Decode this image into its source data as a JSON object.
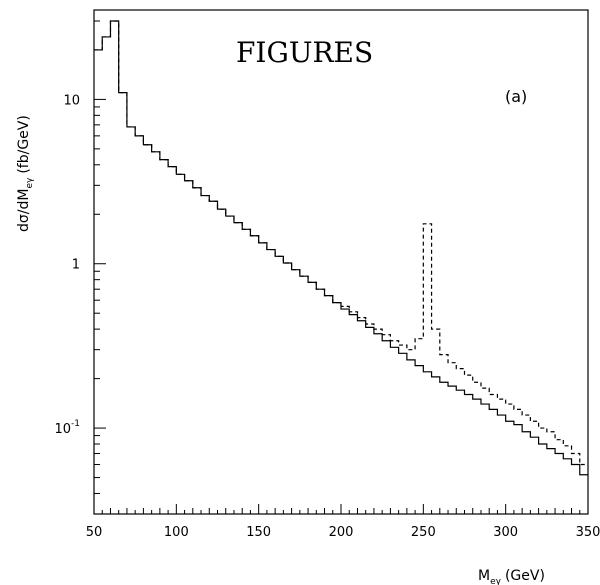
{
  "chart_data": {
    "type": "line",
    "title": "FIGURES",
    "panel_label": "(a)",
    "xlabel": "M",
    "xlabel_sub": "eγ",
    "xlabel_unit": "(GeV)",
    "ylabel": "dσ/dM",
    "ylabel_sub": "eγ",
    "ylabel_unit": "(fb/GeV)",
    "xlim": [
      50,
      350
    ],
    "ylim": [
      0.03,
      35
    ],
    "yscale": "log",
    "grid": false,
    "x_ticks": [
      {
        "value": 50,
        "label": "50"
      },
      {
        "value": 100,
        "label": "100"
      },
      {
        "value": 150,
        "label": "150"
      },
      {
        "value": 200,
        "label": "200"
      },
      {
        "value": 250,
        "label": "250"
      },
      {
        "value": 300,
        "label": "300"
      },
      {
        "value": 350,
        "label": "350"
      }
    ],
    "y_ticks": [
      {
        "value": 0.1,
        "base": "10",
        "exp": "-1"
      },
      {
        "value": 1,
        "base": "1",
        "exp": ""
      },
      {
        "value": 10,
        "base": "10",
        "exp": ""
      }
    ],
    "bin_edges": [
      50,
      55,
      60,
      65,
      70,
      75,
      80,
      85,
      90,
      95,
      100,
      105,
      110,
      115,
      120,
      125,
      130,
      135,
      140,
      145,
      150,
      155,
      160,
      165,
      170,
      175,
      180,
      185,
      190,
      195,
      200,
      205,
      210,
      215,
      220,
      225,
      230,
      235,
      240,
      245,
      250,
      255,
      260,
      265,
      270,
      275,
      280,
      285,
      290,
      295,
      300,
      305,
      310,
      315,
      320,
      325,
      330,
      335,
      340,
      345,
      350
    ],
    "series": [
      {
        "style": "solid",
        "values": [
          20,
          24,
          30,
          11,
          6.8,
          6.0,
          5.3,
          4.8,
          4.3,
          3.9,
          3.5,
          3.2,
          2.9,
          2.6,
          2.4,
          2.15,
          1.95,
          1.78,
          1.62,
          1.48,
          1.34,
          1.22,
          1.11,
          1.01,
          0.92,
          0.84,
          0.77,
          0.7,
          0.64,
          0.58,
          0.53,
          0.49,
          0.45,
          0.41,
          0.375,
          0.34,
          0.31,
          0.285,
          0.26,
          0.24,
          0.22,
          0.205,
          0.19,
          0.18,
          0.17,
          0.16,
          0.15,
          0.14,
          0.13,
          0.12,
          0.11,
          0.105,
          0.095,
          0.088,
          0.08,
          0.075,
          0.07,
          0.065,
          0.06,
          0.052
        ]
      },
      {
        "style": "dashed",
        "values": [
          20,
          24,
          30,
          11,
          6.8,
          6.0,
          5.3,
          4.8,
          4.3,
          3.9,
          3.5,
          3.2,
          2.9,
          2.6,
          2.4,
          2.15,
          1.95,
          1.78,
          1.62,
          1.48,
          1.34,
          1.22,
          1.11,
          1.01,
          0.92,
          0.84,
          0.77,
          0.7,
          0.64,
          0.58,
          0.55,
          0.51,
          0.47,
          0.43,
          0.4,
          0.37,
          0.34,
          0.32,
          0.3,
          0.35,
          1.75,
          0.4,
          0.28,
          0.25,
          0.23,
          0.21,
          0.19,
          0.175,
          0.16,
          0.15,
          0.14,
          0.13,
          0.12,
          0.11,
          0.1,
          0.095,
          0.085,
          0.078,
          0.07,
          0.06
        ]
      }
    ]
  }
}
